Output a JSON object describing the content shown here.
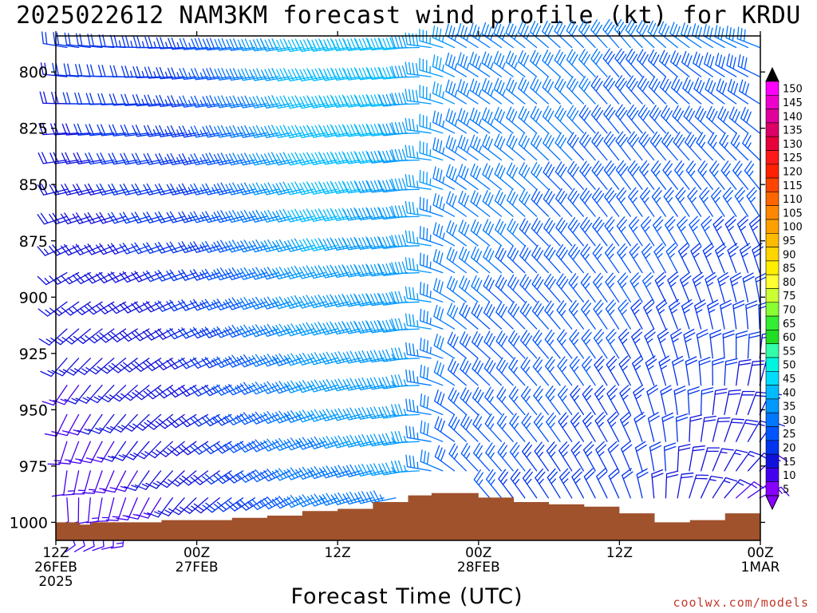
{
  "title": "2025022612 NAM3KM forecast wind profile (kt) for KRDU",
  "xlabel": "Forecast Time (UTC)",
  "credit": "coolwx.com/models",
  "chart_data": {
    "type": "wind-barb-time-height",
    "title": "2025022612 NAM3KM forecast wind profile (kt) for KRDU",
    "xlabel": "Forecast Time (UTC)",
    "ylabel": "",
    "y_axis": {
      "ticks": [
        800,
        825,
        850,
        875,
        900,
        925,
        950,
        975,
        1000
      ],
      "range": [
        1008,
        784
      ],
      "units": "hPa"
    },
    "x_axis": {
      "range_hours": [
        0,
        60
      ],
      "ticks": [
        {
          "hour": 0,
          "lines": [
            "12Z",
            "26FEB",
            "2025"
          ]
        },
        {
          "hour": 12,
          "lines": [
            "00Z",
            "27FEB"
          ]
        },
        {
          "hour": 24,
          "lines": [
            "12Z"
          ]
        },
        {
          "hour": 36,
          "lines": [
            "00Z",
            "28FEB"
          ]
        },
        {
          "hour": 48,
          "lines": [
            "12Z"
          ]
        },
        {
          "hour": 60,
          "lines": [
            "00Z",
            "1MAR"
          ]
        }
      ]
    },
    "ground_surface_hpa": [
      [
        0,
        1000
      ],
      [
        2,
        1001
      ],
      [
        3,
        1000
      ],
      [
        6,
        1000
      ],
      [
        9,
        999
      ],
      [
        12,
        999
      ],
      [
        15,
        998
      ],
      [
        18,
        997
      ],
      [
        21,
        995
      ],
      [
        24,
        994
      ],
      [
        27,
        991
      ],
      [
        30,
        988
      ],
      [
        32,
        987
      ],
      [
        36,
        989
      ],
      [
        39,
        991
      ],
      [
        42,
        992
      ],
      [
        45,
        993
      ],
      [
        48,
        996
      ],
      [
        51,
        1000
      ],
      [
        54,
        999
      ],
      [
        57,
        996
      ],
      [
        60,
        995
      ]
    ],
    "ground_color": "#a0522d",
    "barb_rows_hpa": [
      787,
      800,
      812,
      825,
      837,
      850,
      862,
      875,
      887,
      900,
      912,
      925,
      937,
      950,
      962,
      975,
      987,
      998
    ],
    "wind_profile_key_points": [
      {
        "hour": 0,
        "low_level_dir_deg": 150,
        "low_level_speed_kt": 10,
        "upper_dir_deg": 280,
        "upper_speed_kt": 20
      },
      {
        "hour": 12,
        "low_level_dir_deg": 220,
        "low_level_speed_kt": 15,
        "upper_dir_deg": 265,
        "upper_speed_kt": 25
      },
      {
        "hour": 22,
        "low_level_dir_deg": 245,
        "low_level_speed_kt": 30,
        "upper_dir_deg": 260,
        "upper_speed_kt": 45
      },
      {
        "hour": 30,
        "low_level_dir_deg": 260,
        "low_level_speed_kt": 35,
        "upper_dir_deg": 265,
        "upper_speed_kt": 40
      },
      {
        "hour": 34,
        "low_level_dir_deg": 320,
        "low_level_speed_kt": 25,
        "upper_dir_deg": 300,
        "upper_speed_kt": 35
      },
      {
        "hour": 48,
        "low_level_dir_deg": 340,
        "low_level_speed_kt": 20,
        "upper_dir_deg": 320,
        "upper_speed_kt": 30
      },
      {
        "hour": 60,
        "low_level_dir_deg": 100,
        "low_level_speed_kt": 10,
        "upper_dir_deg": 290,
        "upper_speed_kt": 30
      }
    ],
    "colorbar": {
      "labels": [
        "150",
        "145",
        "140",
        "135",
        "130",
        "125",
        "120",
        "115",
        "110",
        "105",
        "100",
        "95",
        "90",
        "85",
        "80",
        "75",
        "70",
        "65",
        "60",
        "55",
        "50",
        "45",
        "40",
        "35",
        "30",
        "25",
        "20",
        "15",
        "10",
        "5"
      ],
      "colors": [
        "#ff00ff",
        "#ee00cc",
        "#e0009a",
        "#dd0066",
        "#e8003a",
        "#ff1a1a",
        "#ff2200",
        "#ff4400",
        "#ff6600",
        "#ff8800",
        "#ffa000",
        "#ffbb00",
        "#ffd500",
        "#ffee00",
        "#ffff33",
        "#ccff33",
        "#88ff33",
        "#33ee33",
        "#22dd22",
        "#33ffaa",
        "#00f5e0",
        "#00ddff",
        "#00bbff",
        "#0099ff",
        "#0077ff",
        "#0055ff",
        "#0033ee",
        "#1010dd",
        "#4400ee",
        "#8800ff"
      ],
      "top_arrow_color": "#000000",
      "bottom_arrow_color": "#8800ff"
    }
  }
}
